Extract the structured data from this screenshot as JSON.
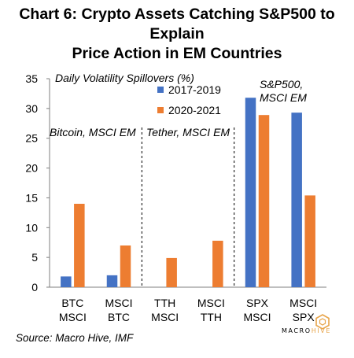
{
  "title_line1": "Chart 6: Crypto Assets Catching S&P500 to Explain",
  "title_line2": "Price Action in EM Countries",
  "source": "Source: Macro Hive, IMF",
  "logo": {
    "text_main": "MACRO",
    "text_accent": "HIVE",
    "accent_color": "#e8a54b",
    "icon": "hexagon-logo-icon"
  },
  "annotations": {
    "ylabel_note": "Daily Volatility Spillovers (%)",
    "group1": "Bitcoin, MSCI EM",
    "group2": "Tether, MSCI EM",
    "group3_line1": "S&P500,",
    "group3_line2": "MSCI EM"
  },
  "chart_data": {
    "type": "bar",
    "categories": [
      [
        "BTC",
        "MSCI"
      ],
      [
        "MSCI",
        "BTC"
      ],
      [
        "TTH",
        "MSCI"
      ],
      [
        "MSCI",
        "TTH"
      ],
      [
        "SPX",
        "MSCI"
      ],
      [
        "MSCI",
        "SPX"
      ]
    ],
    "series": [
      {
        "name": "2017-2019",
        "color": "#4472c4",
        "values": [
          1.8,
          2.0,
          null,
          null,
          31.8,
          29.3
        ]
      },
      {
        "name": "2020-2021",
        "color": "#ed7d31",
        "values": [
          14.0,
          7.0,
          4.9,
          7.8,
          28.9,
          15.4
        ]
      }
    ],
    "ylim": [
      0,
      35
    ],
    "yticks": [
      0,
      5,
      10,
      15,
      20,
      25,
      30,
      35
    ],
    "group_dividers_after_category": [
      2,
      4
    ],
    "legend_position": "top-center",
    "grid": false
  }
}
